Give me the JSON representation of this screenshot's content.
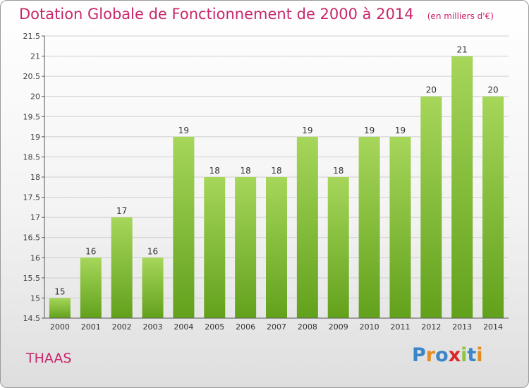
{
  "chart_data": {
    "type": "bar",
    "title": "Dotation Globale de Fonctionnement de 2000 à 2014",
    "subtitle": "(en milliers d'€)",
    "categories": [
      "2000",
      "2001",
      "2002",
      "2003",
      "2004",
      "2005",
      "2006",
      "2007",
      "2008",
      "2009",
      "2010",
      "2011",
      "2012",
      "2013",
      "2014"
    ],
    "values": [
      15,
      16,
      17,
      16,
      19,
      18,
      18,
      18,
      19,
      18,
      19,
      19,
      20,
      21,
      20
    ],
    "value_labels": [
      "15",
      "16",
      "17",
      "16",
      "19",
      "18",
      "18",
      "18",
      "19",
      "18",
      "19",
      "19",
      "20",
      "21",
      "20"
    ],
    "ylim": [
      14.5,
      21.5
    ],
    "yticks": [
      14.5,
      15,
      15.5,
      16,
      16.5,
      17,
      17.5,
      18,
      18.5,
      19,
      19.5,
      20,
      20.5,
      21,
      21.5
    ],
    "ytick_labels": [
      "14.5",
      "15",
      "15.5",
      "16",
      "16.5",
      "17",
      "17.5",
      "18",
      "18.5",
      "19",
      "19.5",
      "20",
      "20.5",
      "21",
      "21.5"
    ],
    "xlabel": "",
    "ylabel": "",
    "grid": true,
    "legend": "none",
    "bar_color": "#7ab22e",
    "bar_color_light": "#9fd14f"
  },
  "footer": {
    "commune": "THAAS",
    "logo_letters": [
      "P",
      "r",
      "o",
      "x",
      "i",
      "t",
      "i"
    ],
    "logo_colors": [
      "#3a86c8",
      "#e58b1f",
      "#3a86c8",
      "#d8282a",
      "#8cc63f",
      "#3a86c8",
      "#e58b1f"
    ]
  },
  "colors": {
    "title": "#c8266a",
    "axis": "#555555",
    "grid": "#cfcfcf"
  }
}
